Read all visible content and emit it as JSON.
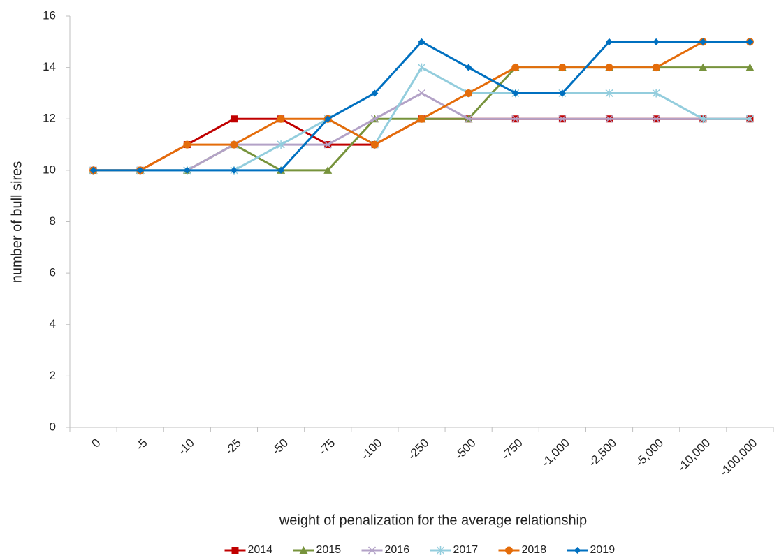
{
  "chart_data": {
    "type": "line",
    "x_label": "weight of penalization for the average relationship",
    "y_label": "number of bull sires",
    "categories": [
      "0",
      "-5",
      "-10",
      "-25",
      "-50",
      "-75",
      "-100",
      "-250",
      "-500",
      "-750",
      "-1,000",
      "-2,500",
      "-5,000",
      "-10,000",
      "-100,000"
    ],
    "series": [
      {
        "name": "2014",
        "color": "#c00000",
        "marker": "square",
        "values": [
          10,
          10,
          11,
          12,
          12,
          11,
          11,
          12,
          12,
          12,
          12,
          12,
          12,
          12,
          12
        ]
      },
      {
        "name": "2015",
        "color": "#77933c",
        "marker": "triangle",
        "values": [
          10,
          10,
          10,
          11,
          10,
          10,
          12,
          12,
          12,
          14,
          14,
          14,
          14,
          14,
          14
        ]
      },
      {
        "name": "2016",
        "color": "#b3a2c7",
        "marker": "x",
        "values": [
          10,
          10,
          10,
          11,
          11,
          11,
          12,
          13,
          12,
          12,
          12,
          12,
          12,
          12,
          12
        ]
      },
      {
        "name": "2017",
        "color": "#93cddd",
        "marker": "star",
        "values": [
          10,
          10,
          10,
          10,
          11,
          12,
          11,
          14,
          13,
          13,
          13,
          13,
          13,
          12,
          12
        ]
      },
      {
        "name": "2018",
        "color": "#e46c0a",
        "marker": "circle",
        "values": [
          10,
          10,
          11,
          11,
          12,
          12,
          11,
          12,
          13,
          14,
          14,
          14,
          14,
          15,
          15
        ]
      },
      {
        "name": "2019",
        "color": "#0070c0",
        "marker": "diamond",
        "values": [
          10,
          10,
          10,
          10,
          10,
          12,
          13,
          15,
          14,
          13,
          13,
          15,
          15,
          15,
          15
        ]
      }
    ],
    "ylim": [
      0,
      16
    ],
    "yticks": [
      0,
      2,
      4,
      6,
      8,
      10,
      12,
      14,
      16
    ],
    "grid": false,
    "legend": "bottom"
  }
}
